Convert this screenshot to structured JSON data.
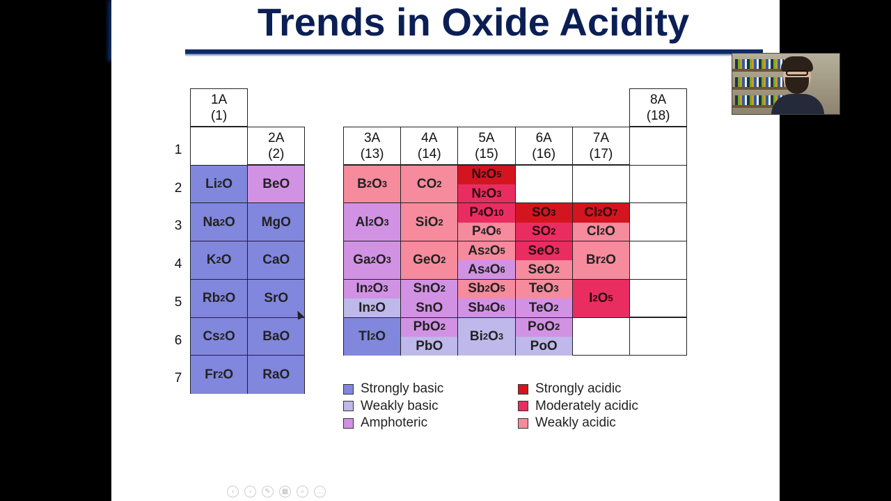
{
  "slide": {
    "title": "Trends in Oxide Acidity"
  },
  "colors": {
    "strongly_basic": "#8187dd",
    "weakly_basic": "#bfb8ea",
    "amphoteric": "#d192e4",
    "strongly_acidic": "#d3151f",
    "moderately_acidic": "#ea2d61",
    "weakly_acidic": "#f58b9c",
    "title": "#0b1f54"
  },
  "group_headers": [
    {
      "id": "g1",
      "label": "1A",
      "number": "(1)"
    },
    {
      "id": "g2",
      "label": "2A",
      "number": "(2)"
    },
    {
      "id": "g13",
      "label": "3A",
      "number": "(13)"
    },
    {
      "id": "g14",
      "label": "4A",
      "number": "(14)"
    },
    {
      "id": "g15",
      "label": "5A",
      "number": "(15)"
    },
    {
      "id": "g16",
      "label": "6A",
      "number": "(16)"
    },
    {
      "id": "g17",
      "label": "7A",
      "number": "(17)"
    },
    {
      "id": "g18",
      "label": "8A",
      "number": "(18)"
    }
  ],
  "periods": [
    "1",
    "2",
    "3",
    "4",
    "5",
    "6",
    "7"
  ],
  "oxide_cells": [
    {
      "group": 1,
      "period": 2,
      "oxides": [
        {
          "f": "Li|2|O",
          "c": "strongly_basic"
        }
      ]
    },
    {
      "group": 1,
      "period": 3,
      "oxides": [
        {
          "f": "Na|2|O",
          "c": "strongly_basic"
        }
      ]
    },
    {
      "group": 1,
      "period": 4,
      "oxides": [
        {
          "f": "K|2|O",
          "c": "strongly_basic"
        }
      ]
    },
    {
      "group": 1,
      "period": 5,
      "oxides": [
        {
          "f": "Rb|2|O",
          "c": "strongly_basic"
        }
      ]
    },
    {
      "group": 1,
      "period": 6,
      "oxides": [
        {
          "f": "Cs|2|O",
          "c": "strongly_basic"
        }
      ]
    },
    {
      "group": 1,
      "period": 7,
      "oxides": [
        {
          "f": "Fr|2|O",
          "c": "strongly_basic"
        }
      ]
    },
    {
      "group": 2,
      "period": 2,
      "oxides": [
        {
          "f": "BeO",
          "c": "amphoteric"
        }
      ]
    },
    {
      "group": 2,
      "period": 3,
      "oxides": [
        {
          "f": "MgO",
          "c": "strongly_basic"
        }
      ]
    },
    {
      "group": 2,
      "period": 4,
      "oxides": [
        {
          "f": "CaO",
          "c": "strongly_basic"
        }
      ]
    },
    {
      "group": 2,
      "period": 5,
      "oxides": [
        {
          "f": "SrO",
          "c": "strongly_basic"
        }
      ]
    },
    {
      "group": 2,
      "period": 6,
      "oxides": [
        {
          "f": "BaO",
          "c": "strongly_basic"
        }
      ]
    },
    {
      "group": 2,
      "period": 7,
      "oxides": [
        {
          "f": "RaO",
          "c": "strongly_basic"
        }
      ]
    },
    {
      "group": 13,
      "period": 2,
      "oxides": [
        {
          "f": "B|2|O|3",
          "c": "weakly_acidic"
        }
      ]
    },
    {
      "group": 13,
      "period": 3,
      "oxides": [
        {
          "f": "Al|2|O|3",
          "c": "amphoteric"
        }
      ]
    },
    {
      "group": 13,
      "period": 4,
      "oxides": [
        {
          "f": "Ga|2|O|3",
          "c": "amphoteric"
        }
      ]
    },
    {
      "group": 13,
      "period": 5,
      "oxides": [
        {
          "f": "In|2|O|3",
          "c": "amphoteric"
        },
        {
          "f": "In|2|O",
          "c": "weakly_basic"
        }
      ]
    },
    {
      "group": 13,
      "period": 6,
      "oxides": [
        {
          "f": "Tl|2|O",
          "c": "strongly_basic"
        }
      ]
    },
    {
      "group": 14,
      "period": 2,
      "oxides": [
        {
          "f": "CO|2",
          "c": "weakly_acidic"
        }
      ]
    },
    {
      "group": 14,
      "period": 3,
      "oxides": [
        {
          "f": "SiO|2",
          "c": "weakly_acidic"
        }
      ]
    },
    {
      "group": 14,
      "period": 4,
      "oxides": [
        {
          "f": "GeO|2",
          "c": "weakly_acidic"
        }
      ]
    },
    {
      "group": 14,
      "period": 5,
      "oxides": [
        {
          "f": "SnO|2",
          "c": "amphoteric"
        },
        {
          "f": "SnO",
          "c": "amphoteric"
        }
      ]
    },
    {
      "group": 14,
      "period": 6,
      "oxides": [
        {
          "f": "PbO|2",
          "c": "amphoteric"
        },
        {
          "f": "PbO",
          "c": "weakly_basic"
        }
      ]
    },
    {
      "group": 15,
      "period": 2,
      "oxides": [
        {
          "f": "N|2|O|5",
          "c": "strongly_acidic"
        },
        {
          "f": "N|2|O|3",
          "c": "moderately_acidic"
        }
      ]
    },
    {
      "group": 15,
      "period": 3,
      "oxides": [
        {
          "f": "P|4|O|10",
          "c": "moderately_acidic"
        },
        {
          "f": "P|4|O|6",
          "c": "weakly_acidic"
        }
      ]
    },
    {
      "group": 15,
      "period": 4,
      "oxides": [
        {
          "f": "As|2|O|5",
          "c": "weakly_acidic"
        },
        {
          "f": "As|4|O|6",
          "c": "amphoteric"
        }
      ]
    },
    {
      "group": 15,
      "period": 5,
      "oxides": [
        {
          "f": "Sb|2|O|5",
          "c": "weakly_acidic"
        },
        {
          "f": "Sb|4|O|6",
          "c": "amphoteric"
        }
      ]
    },
    {
      "group": 15,
      "period": 6,
      "oxides": [
        {
          "f": "Bi|2|O|3",
          "c": "weakly_basic"
        }
      ]
    },
    {
      "group": 16,
      "period": 3,
      "oxides": [
        {
          "f": "SO|3",
          "c": "strongly_acidic"
        },
        {
          "f": "SO|2",
          "c": "moderately_acidic"
        }
      ]
    },
    {
      "group": 16,
      "period": 4,
      "oxides": [
        {
          "f": "SeO|3",
          "c": "moderately_acidic"
        },
        {
          "f": "SeO|2",
          "c": "weakly_acidic"
        }
      ]
    },
    {
      "group": 16,
      "period": 5,
      "oxides": [
        {
          "f": "TeO|3",
          "c": "weakly_acidic"
        },
        {
          "f": "TeO|2",
          "c": "amphoteric"
        }
      ]
    },
    {
      "group": 16,
      "period": 6,
      "oxides": [
        {
          "f": "PoO|2",
          "c": "amphoteric"
        },
        {
          "f": "PoO",
          "c": "weakly_basic"
        }
      ]
    },
    {
      "group": 17,
      "period": 3,
      "oxides": [
        {
          "f": "Cl|2|O|7",
          "c": "strongly_acidic"
        },
        {
          "f": "Cl|2|O",
          "c": "weakly_acidic"
        }
      ]
    },
    {
      "group": 17,
      "period": 4,
      "oxides": [
        {
          "f": "Br|2|O",
          "c": "weakly_acidic"
        }
      ]
    },
    {
      "group": 17,
      "period": 5,
      "oxides": [
        {
          "f": "I|2|O|5",
          "c": "moderately_acidic"
        }
      ]
    }
  ],
  "legend": [
    {
      "label": "Strongly basic",
      "c": "strongly_basic"
    },
    {
      "label": "Weakly basic",
      "c": "weakly_basic"
    },
    {
      "label": "Amphoteric",
      "c": "amphoteric"
    },
    {
      "label": "Strongly acidic",
      "c": "strongly_acidic"
    },
    {
      "label": "Moderately acidic",
      "c": "moderately_acidic"
    },
    {
      "label": "Weakly acidic",
      "c": "weakly_acidic"
    }
  ],
  "controls": [
    "previous-icon",
    "next-icon",
    "pen-icon",
    "slides-icon",
    "zoom-icon",
    "more-icon"
  ]
}
